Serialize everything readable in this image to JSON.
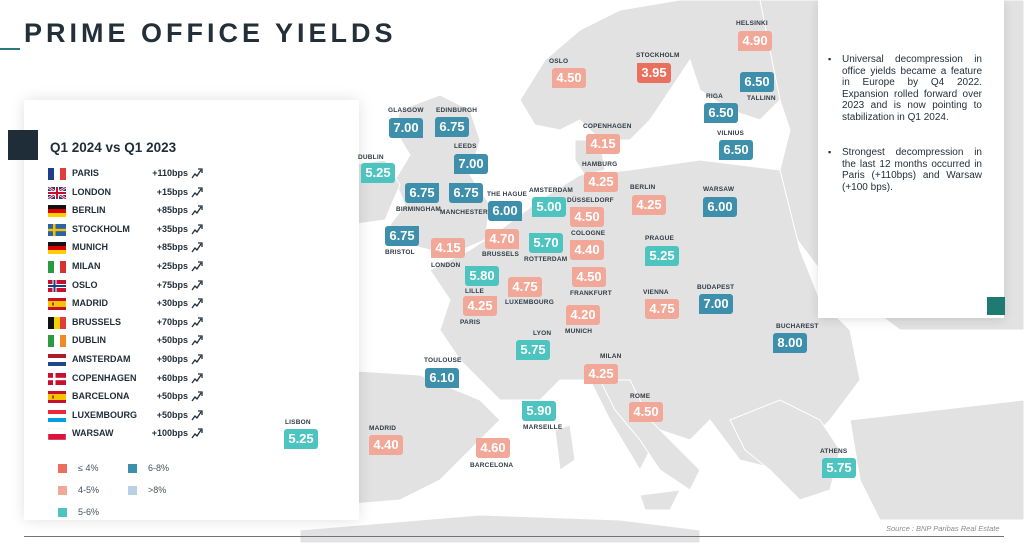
{
  "title": "PRIME OFFICE YIELDS",
  "panel": {
    "heading": "Q1 2024 vs Q1 2023",
    "rows": [
      {
        "city": "PARIS",
        "delta": "+110bps",
        "flag": "fr"
      },
      {
        "city": "LONDON",
        "delta": "+15bps",
        "flag": "uk"
      },
      {
        "city": "BERLIN",
        "delta": "+85bps",
        "flag": "de"
      },
      {
        "city": "STOCKHOLM",
        "delta": "+35bps",
        "flag": "se"
      },
      {
        "city": "MUNICH",
        "delta": "+85bps",
        "flag": "de"
      },
      {
        "city": "MILAN",
        "delta": "+25bps",
        "flag": "it"
      },
      {
        "city": "OSLO",
        "delta": "+75bps",
        "flag": "no"
      },
      {
        "city": "MADRID",
        "delta": "+30bps",
        "flag": "es"
      },
      {
        "city": "BRUSSELS",
        "delta": "+70bps",
        "flag": "be"
      },
      {
        "city": "DUBLIN",
        "delta": "+50bps",
        "flag": "ie"
      },
      {
        "city": "AMSTERDAM",
        "delta": "+90bps",
        "flag": "nl"
      },
      {
        "city": "COPENHAGEN",
        "delta": "+60bps",
        "flag": "dk"
      },
      {
        "city": "BARCELONA",
        "delta": "+50bps",
        "flag": "es"
      },
      {
        "city": "LUXEMBOURG",
        "delta": "+50bps",
        "flag": "lu"
      },
      {
        "city": "WARSAW",
        "delta": "+100bps",
        "flag": "pl"
      }
    ]
  },
  "legend": [
    {
      "label": "≤ 4%",
      "color": "#e9705e"
    },
    {
      "label": "4-5%",
      "color": "#f2a898"
    },
    {
      "label": "5-6%",
      "color": "#4dc4c0"
    },
    {
      "label": "6-8%",
      "color": "#3d8fab"
    },
    {
      "label": ">8%",
      "color": "#b9cfe6"
    }
  ],
  "markers": [
    {
      "city": "HELSINKI",
      "value": "4.90"
    },
    {
      "city": "OSLO",
      "value": "4.50"
    },
    {
      "city": "STOCKHOLM",
      "value": "3.95"
    },
    {
      "city": "TALLINN",
      "value": "6.50"
    },
    {
      "city": "RIGA",
      "value": "6.50"
    },
    {
      "city": "VILNIUS",
      "value": "6.50"
    },
    {
      "city": "GLASGOW",
      "value": "7.00"
    },
    {
      "city": "EDINBURGH",
      "value": "6.75"
    },
    {
      "city": "COPENHAGEN",
      "value": "4.15"
    },
    {
      "city": "DUBLIN",
      "value": "5.25"
    },
    {
      "city": "LEEDS",
      "value": "7.00"
    },
    {
      "city": "HAMBURG",
      "value": "4.25"
    },
    {
      "city": "BERLIN",
      "value": "4.25"
    },
    {
      "city": "WARSAW",
      "value": "6.00"
    },
    {
      "city": "BIRMINGHAM",
      "value": "6.75"
    },
    {
      "city": "MANCHESTER",
      "value": "6.75"
    },
    {
      "city": "THE HAGUE",
      "value": "6.00"
    },
    {
      "city": "AMSTERDAM",
      "value": "5.00"
    },
    {
      "city": "DÜSSELDORF",
      "value": "4.50"
    },
    {
      "city": "BRISTOL",
      "value": "6.75"
    },
    {
      "city": "LONDON",
      "value": "4.15"
    },
    {
      "city": "BRUSSELS",
      "value": "4.70"
    },
    {
      "city": "ROTTERDAM",
      "value": "5.70"
    },
    {
      "city": "COLOGNE",
      "value": "4.40"
    },
    {
      "city": "PRAGUE",
      "value": "5.25"
    },
    {
      "city": "LILLE",
      "value": "5.80"
    },
    {
      "city": "LUXEMBOURG",
      "value": "4.75"
    },
    {
      "city": "FRANKFURT",
      "value": "4.50"
    },
    {
      "city": "PARIS",
      "value": "4.25"
    },
    {
      "city": "VIENNA",
      "value": "4.75"
    },
    {
      "city": "BUDAPEST",
      "value": "7.00"
    },
    {
      "city": "MUNICH",
      "value": "4.20"
    },
    {
      "city": "LYON",
      "value": "5.75"
    },
    {
      "city": "BUCHAREST",
      "value": "8.00"
    },
    {
      "city": "TOULOUSE",
      "value": "6.10"
    },
    {
      "city": "MILAN",
      "value": "4.25"
    },
    {
      "city": "ROME",
      "value": "4.50"
    },
    {
      "city": "MARSEILLE",
      "value": "5.90"
    },
    {
      "city": "LISBON",
      "value": "5.25"
    },
    {
      "city": "MADRID",
      "value": "4.40"
    },
    {
      "city": "BARCELONA",
      "value": "4.60"
    },
    {
      "city": "ATHENS",
      "value": "5.75"
    }
  ],
  "notes": [
    "Universal decompression in office yields became a feature in Europe by Q4 2022. Expansion rolled forward over 2023 and is now pointing to stabilization in Q1 2024.",
    "Strongest decompression in the last 12 months occurred in Paris (+110bps) and Warsaw (+100 bps)."
  ],
  "source": "Source : BNP Paribas Real Estate"
}
